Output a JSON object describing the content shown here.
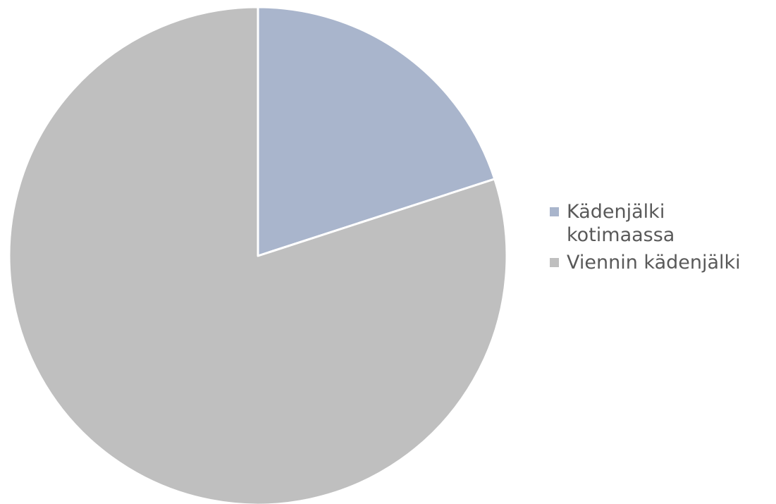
{
  "chart_data": {
    "type": "pie",
    "categories": [
      "Kädenjälki kotimaassa",
      "Viennin kädenjälki"
    ],
    "values": [
      20,
      80
    ],
    "colors": [
      "#a9b5cc",
      "#bfbfbf"
    ],
    "start_angle": 0,
    "direction": "clockwise",
    "legend": "right"
  }
}
